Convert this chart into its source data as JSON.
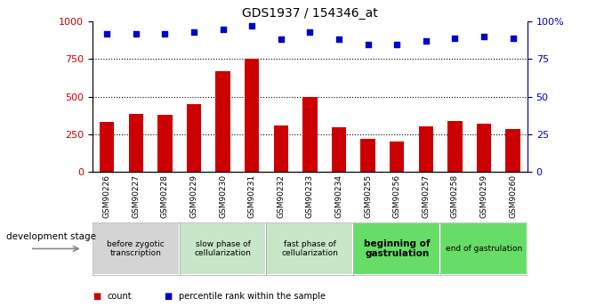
{
  "title": "GDS1937 / 154346_at",
  "samples": [
    "GSM90226",
    "GSM90227",
    "GSM90228",
    "GSM90229",
    "GSM90230",
    "GSM90231",
    "GSM90232",
    "GSM90233",
    "GSM90234",
    "GSM90255",
    "GSM90256",
    "GSM90257",
    "GSM90258",
    "GSM90259",
    "GSM90260"
  ],
  "counts": [
    330,
    385,
    380,
    450,
    670,
    755,
    310,
    500,
    295,
    220,
    205,
    305,
    340,
    320,
    285
  ],
  "percentiles": [
    92,
    92,
    92,
    93,
    95,
    97,
    88,
    93,
    88,
    85,
    85,
    87,
    89,
    90,
    89
  ],
  "bar_color": "#cc0000",
  "dot_color": "#0000cc",
  "ylim_left": [
    0,
    1000
  ],
  "ylim_right": [
    0,
    100
  ],
  "yticks_left": [
    0,
    250,
    500,
    750,
    1000
  ],
  "yticks_right": [
    0,
    25,
    50,
    75,
    100
  ],
  "ytick_labels_right": [
    "0",
    "25",
    "50",
    "75",
    "100%"
  ],
  "grid_values": [
    250,
    500,
    750
  ],
  "stage_configs": [
    {
      "label": "before zygotic\ntranscription",
      "start": 0,
      "end": 2,
      "color": "#d4d4d4",
      "fontsize": 6.5,
      "bold": false
    },
    {
      "label": "slow phase of\ncellularization",
      "start": 3,
      "end": 5,
      "color": "#c8e6c8",
      "fontsize": 6.5,
      "bold": false
    },
    {
      "label": "fast phase of\ncellularization",
      "start": 6,
      "end": 8,
      "color": "#c8e6c8",
      "fontsize": 6.5,
      "bold": false
    },
    {
      "label": "beginning of\ngastrulation",
      "start": 9,
      "end": 11,
      "color": "#66dd66",
      "fontsize": 7.5,
      "bold": true
    },
    {
      "label": "end of gastrulation",
      "start": 12,
      "end": 14,
      "color": "#66dd66",
      "fontsize": 6.5,
      "bold": false
    }
  ],
  "dev_stage_label": "development stage",
  "legend_count": "count",
  "legend_percentile": "percentile rank within the sample",
  "bar_width": 0.5
}
